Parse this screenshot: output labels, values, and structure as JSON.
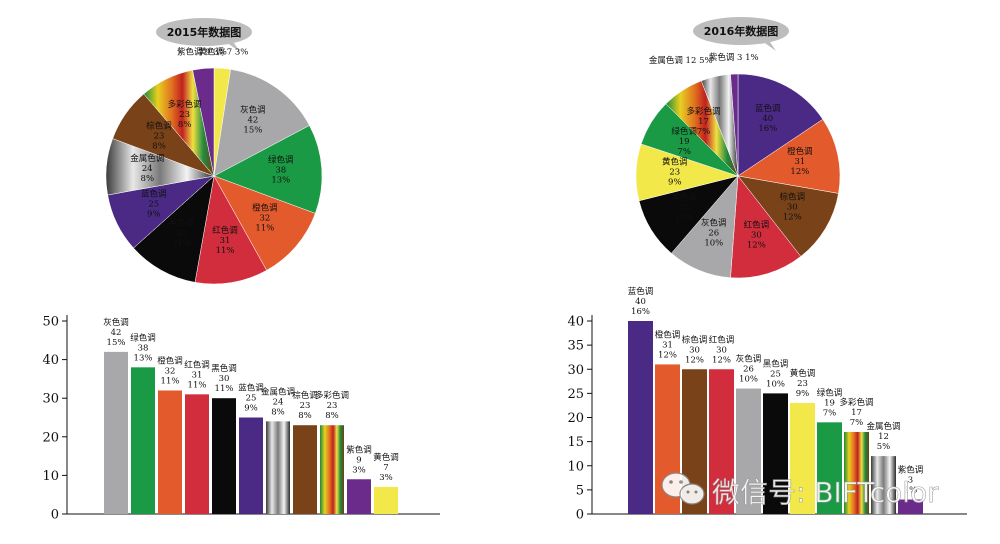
{
  "chart_data": [
    {
      "type": "pie",
      "title": "2015年数据图",
      "slices": [
        {
          "name": "黄色调",
          "value": 7,
          "pct": "3%",
          "color": "#f2e84a"
        },
        {
          "name": "灰色调",
          "value": 42,
          "pct": "15%",
          "color": "#a8a8aa"
        },
        {
          "name": "绿色调",
          "value": 38,
          "pct": "13%",
          "color": "#1b9a45"
        },
        {
          "name": "橙色调",
          "value": 32,
          "pct": "11%",
          "color": "#e35a2c"
        },
        {
          "name": "红色调",
          "value": 31,
          "pct": "11%",
          "color": "#d12d3c"
        },
        {
          "name": "黑色调",
          "value": 30,
          "pct": "11%",
          "color": "#0a0a0a"
        },
        {
          "name": "蓝色调",
          "value": 25,
          "pct": "9%",
          "color": "#4b2a86"
        },
        {
          "name": "金属色调",
          "value": 24,
          "pct": "8%",
          "color": "metal"
        },
        {
          "name": "棕色调",
          "value": 23,
          "pct": "8%",
          "color": "#7a4218"
        },
        {
          "name": "多彩色调",
          "value": 23,
          "pct": "8%",
          "color": "multi"
        },
        {
          "name": "紫色调",
          "value": 9,
          "pct": "3%",
          "color": "#6a2b8a"
        }
      ]
    },
    {
      "type": "pie",
      "title": "2016年数据图",
      "slices": [
        {
          "name": "蓝色调",
          "value": 40,
          "pct": "16%",
          "color": "#4b2a86"
        },
        {
          "name": "橙色调",
          "value": 31,
          "pct": "12%",
          "color": "#e35a2c"
        },
        {
          "name": "棕色调",
          "value": 30,
          "pct": "12%",
          "color": "#7a4218"
        },
        {
          "name": "红色调",
          "value": 30,
          "pct": "12%",
          "color": "#d12d3c"
        },
        {
          "name": "灰色调",
          "value": 26,
          "pct": "10%",
          "color": "#a8a8aa"
        },
        {
          "name": "黑色调",
          "value": 25,
          "pct": "10%",
          "color": "#0a0a0a"
        },
        {
          "name": "黄色调",
          "value": 23,
          "pct": "9%",
          "color": "#f2e84a"
        },
        {
          "name": "绿色调",
          "value": 19,
          "pct": "7%",
          "color": "#1b9a45"
        },
        {
          "name": "多彩色调",
          "value": 17,
          "pct": "7%",
          "color": "multi"
        },
        {
          "name": "金属色调",
          "value": 12,
          "pct": "5%",
          "color": "metal"
        },
        {
          "name": "紫色调",
          "value": 3,
          "pct": "1%",
          "color": "#6a2b8a"
        }
      ]
    },
    {
      "type": "bar",
      "categories": [
        "灰色调",
        "绿色调",
        "橙色调",
        "红色调",
        "黑色调",
        "蓝色调",
        "金属色调",
        "棕色调",
        "多彩色调",
        "紫色调",
        "黄色调"
      ],
      "values": [
        42,
        38,
        32,
        31,
        30,
        25,
        24,
        23,
        23,
        9,
        7
      ],
      "pcts": [
        "15%",
        "13%",
        "11%",
        "11%",
        "11%",
        "9%",
        "8%",
        "8%",
        "8%",
        "3%",
        "3%"
      ],
      "colors": [
        "#a8a8aa",
        "#1b9a45",
        "#e35a2c",
        "#d12d3c",
        "#0a0a0a",
        "#4b2a86",
        "metal",
        "#7a4218",
        "multi",
        "#6a2b8a",
        "#f2e84a"
      ],
      "yticks": [
        0,
        10,
        20,
        30,
        40,
        50
      ],
      "ylim": [
        0,
        50
      ]
    },
    {
      "type": "bar",
      "categories": [
        "蓝色调",
        "橙色调",
        "棕色调",
        "红色调",
        "灰色调",
        "黑色调",
        "黄色调",
        "绿色调",
        "多彩色调",
        "金属色调",
        "紫色调"
      ],
      "values": [
        40,
        31,
        30,
        30,
        26,
        25,
        23,
        19,
        17,
        12,
        3
      ],
      "pcts": [
        "16%",
        "12%",
        "12%",
        "12%",
        "10%",
        "10%",
        "9%",
        "7%",
        "7%",
        "5%",
        "1%"
      ],
      "colors": [
        "#4b2a86",
        "#e35a2c",
        "#7a4218",
        "#d12d3c",
        "#a8a8aa",
        "#0a0a0a",
        "#f2e84a",
        "#1b9a45",
        "multi",
        "metal",
        "#6a2b8a"
      ],
      "yticks": [
        0,
        5,
        10,
        15,
        20,
        25,
        30,
        35,
        40
      ],
      "ylim": [
        0,
        40
      ]
    }
  ],
  "watermark": {
    "text": "微信号: BIFTcolor",
    "icon": "wechat-icon"
  }
}
